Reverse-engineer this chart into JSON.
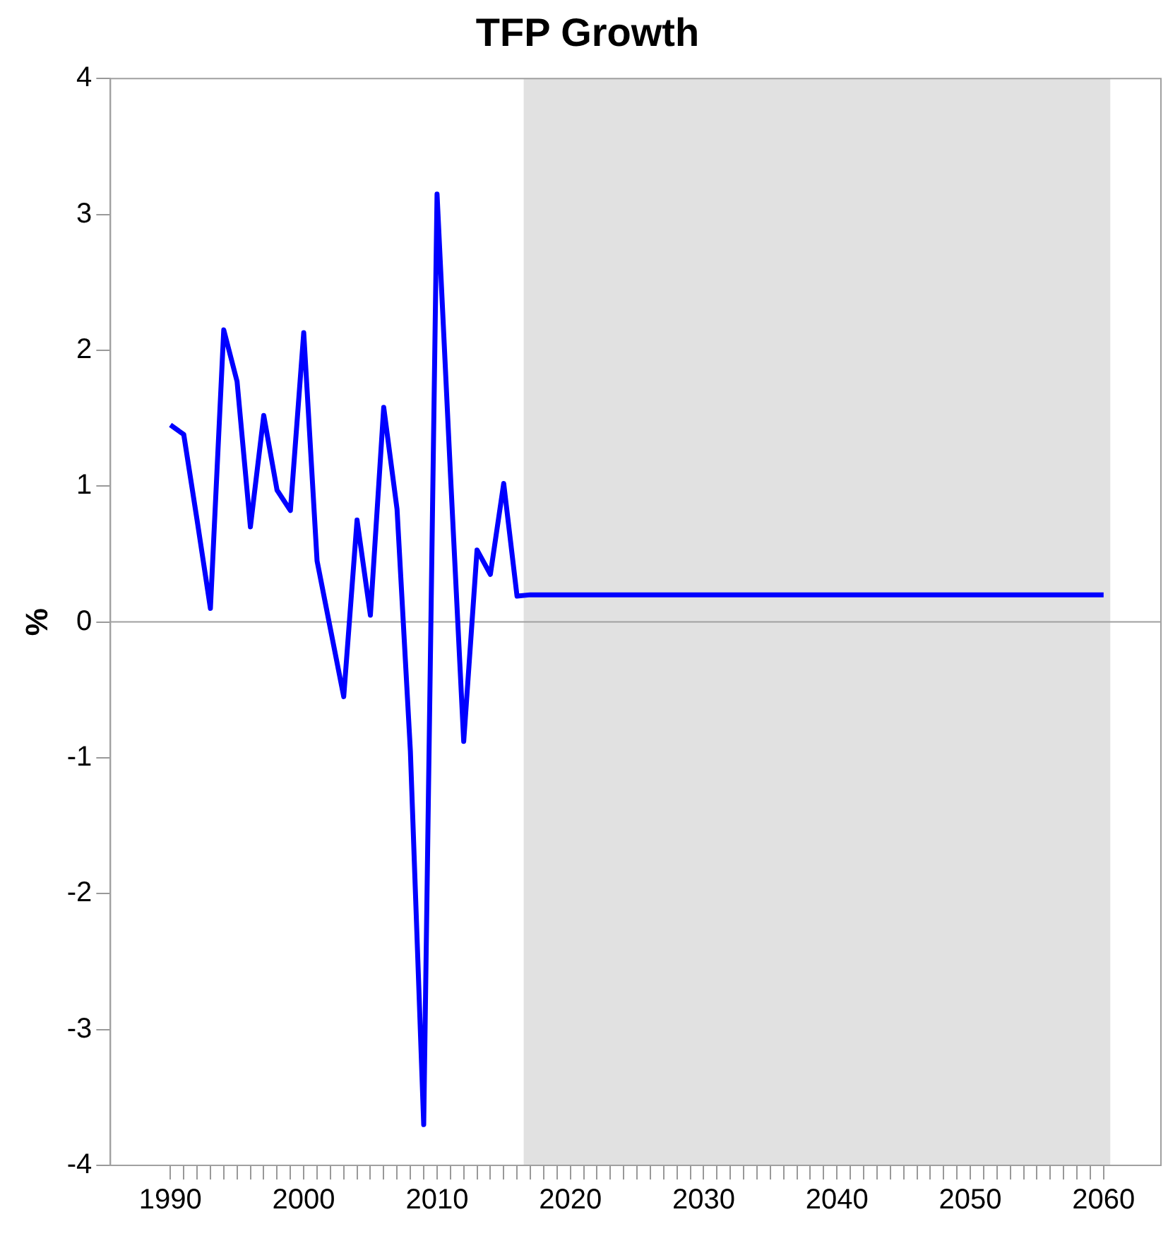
{
  "chart_data": {
    "type": "line",
    "title": "TFP Growth",
    "ylabel": "%",
    "x": [
      1990,
      1991,
      1992,
      1993,
      1994,
      1995,
      1996,
      1997,
      1998,
      1999,
      2000,
      2001,
      2002,
      2003,
      2004,
      2005,
      2006,
      2007,
      2008,
      2009,
      2010,
      2011,
      2012,
      2013,
      2014,
      2015,
      2016,
      2017,
      2018,
      2019,
      2020,
      2021,
      2022,
      2023,
      2024,
      2025,
      2026,
      2027,
      2028,
      2029,
      2030,
      2031,
      2032,
      2033,
      2034,
      2035,
      2036,
      2037,
      2038,
      2039,
      2040,
      2041,
      2042,
      2043,
      2044,
      2045,
      2046,
      2047,
      2048,
      2049,
      2050,
      2051,
      2052,
      2053,
      2054,
      2055,
      2056,
      2057,
      2058,
      2059,
      2060
    ],
    "series": [
      {
        "color": "#0000ff",
        "values": [
          1.45,
          1.38,
          0.75,
          0.1,
          2.15,
          1.77,
          0.7,
          1.52,
          0.97,
          0.82,
          2.13,
          0.45,
          -0.05,
          -0.55,
          0.75,
          0.05,
          1.58,
          0.83,
          -0.95,
          -3.7,
          3.15,
          1.1,
          -0.88,
          0.53,
          0.35,
          1.02,
          0.19,
          0.2,
          0.2,
          0.2,
          0.2,
          0.2,
          0.2,
          0.2,
          0.2,
          0.2,
          0.2,
          0.2,
          0.2,
          0.2,
          0.2,
          0.2,
          0.2,
          0.2,
          0.2,
          0.2,
          0.2,
          0.2,
          0.2,
          0.2,
          0.2,
          0.2,
          0.2,
          0.2,
          0.2,
          0.2,
          0.2,
          0.2,
          0.2,
          0.2,
          0.2,
          0.2,
          0.2,
          0.2,
          0.2,
          0.2,
          0.2,
          0.2,
          0.2,
          0.2,
          0.2
        ]
      }
    ],
    "xlim": [
      1985.5,
      2064.3
    ],
    "xticks": [
      1990,
      {
        "value": 1991,
        "label": null
      },
      {
        "value": 1992,
        "label": null
      },
      {
        "value": 1993,
        "label": null
      },
      {
        "value": 1994,
        "label": null
      },
      {
        "value": 1995,
        "label": null
      },
      {
        "value": 1996,
        "label": null
      },
      {
        "value": 1997,
        "label": null
      },
      {
        "value": 1998,
        "label": null
      },
      {
        "value": 1999,
        "label": null
      },
      2000,
      {
        "value": 2001,
        "label": null
      },
      {
        "value": 2002,
        "label": null
      },
      {
        "value": 2003,
        "label": null
      },
      {
        "value": 2004,
        "label": null
      },
      {
        "value": 2005,
        "label": null
      },
      {
        "value": 2006,
        "label": null
      },
      {
        "value": 2007,
        "label": null
      },
      {
        "value": 2008,
        "label": null
      },
      {
        "value": 2009,
        "label": null
      },
      2010,
      {
        "value": 2011,
        "label": null
      },
      {
        "value": 2012,
        "label": null
      },
      {
        "value": 2013,
        "label": null
      },
      {
        "value": 2014,
        "label": null
      },
      {
        "value": 2015,
        "label": null
      },
      {
        "value": 2016,
        "label": null
      },
      {
        "value": 2017,
        "label": null
      },
      {
        "value": 2018,
        "label": null
      },
      {
        "value": 2019,
        "label": null
      },
      2020,
      {
        "value": 2021,
        "label": null
      },
      {
        "value": 2022,
        "label": null
      },
      {
        "value": 2023,
        "label": null
      },
      {
        "value": 2024,
        "label": null
      },
      {
        "value": 2025,
        "label": null
      },
      {
        "value": 2026,
        "label": null
      },
      {
        "value": 2027,
        "label": null
      },
      {
        "value": 2028,
        "label": null
      },
      {
        "value": 2029,
        "label": null
      },
      2030,
      {
        "value": 2031,
        "label": null
      },
      {
        "value": 2032,
        "label": null
      },
      {
        "value": 2033,
        "label": null
      },
      {
        "value": 2034,
        "label": null
      },
      {
        "value": 2035,
        "label": null
      },
      {
        "value": 2036,
        "label": null
      },
      {
        "value": 2037,
        "label": null
      },
      {
        "value": 2038,
        "label": null
      },
      {
        "value": 2039,
        "label": null
      },
      2040,
      {
        "value": 2041,
        "label": null
      },
      {
        "value": 2042,
        "label": null
      },
      {
        "value": 2043,
        "label": null
      },
      {
        "value": 2044,
        "label": null
      },
      {
        "value": 2045,
        "label": null
      },
      {
        "value": 2046,
        "label": null
      },
      {
        "value": 2047,
        "label": null
      },
      {
        "value": 2048,
        "label": null
      },
      {
        "value": 2049,
        "label": null
      },
      2050,
      {
        "value": 2051,
        "label": null
      },
      {
        "value": 2052,
        "label": null
      },
      {
        "value": 2053,
        "label": null
      },
      {
        "value": 2054,
        "label": null
      },
      {
        "value": 2055,
        "label": null
      },
      {
        "value": 2056,
        "label": null
      },
      {
        "value": 2057,
        "label": null
      },
      {
        "value": 2058,
        "label": null
      },
      {
        "value": 2059,
        "label": null
      },
      2060
    ],
    "ylim": [
      -4,
      4
    ],
    "yticks": [
      -4,
      -3,
      -2,
      -1,
      0,
      1,
      2,
      3,
      4
    ],
    "bands": [
      {
        "axis": "x",
        "from": 2016.5,
        "to": 2060.5,
        "color": "#e1e1e1"
      }
    ],
    "ref_lines": [
      {
        "axis": "y",
        "value": 0,
        "color": "#a0a0a0"
      }
    ],
    "grid": false,
    "legend": false,
    "marker": "none",
    "line_style": "solid"
  }
}
